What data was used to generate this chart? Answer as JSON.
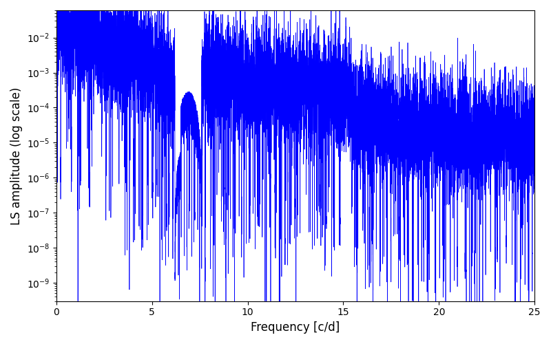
{
  "title": "",
  "xlabel": "Frequency [c/d]",
  "ylabel": "LS amplitude (log scale)",
  "xlim": [
    0,
    25
  ],
  "ylim": [
    3e-10,
    0.06
  ],
  "line_color": "#0000FF",
  "line_width": 0.5,
  "background_color": "#ffffff",
  "figsize": [
    8.0,
    5.0
  ],
  "dpi": 100,
  "freq_max": 25.0,
  "n_points": 15000,
  "seed": 7
}
